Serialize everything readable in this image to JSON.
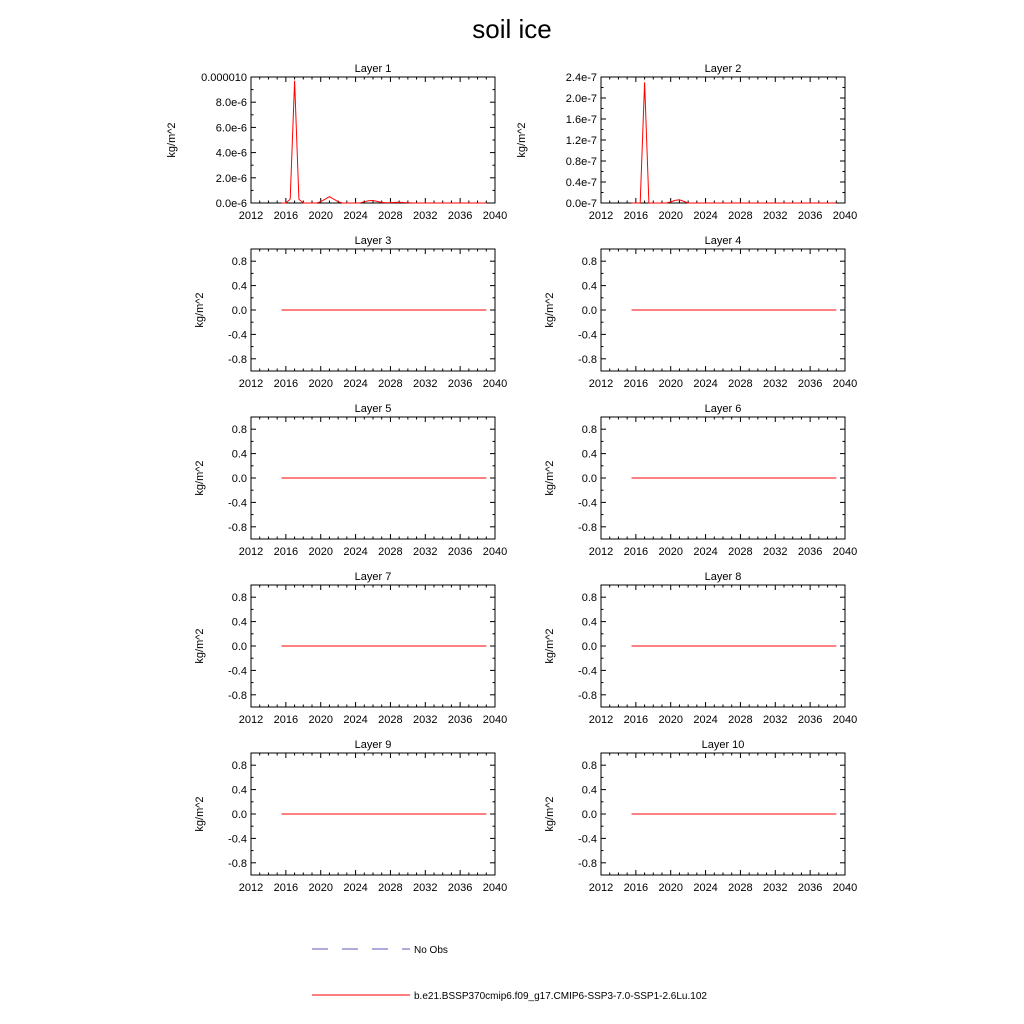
{
  "title": "soil ice",
  "colors": {
    "model": "#ff0000",
    "obs": "#5a5ab4",
    "axis": "#000000"
  },
  "legend": [
    {
      "label": "No Obs",
      "style": "dashed",
      "color": "#5a5ab4"
    },
    {
      "label": "b.e21.BSSP370cmip6.f09_g17.CMIP6-SSP3-7.0-SSP1-2.6Lu.102",
      "style": "solid",
      "color": "#ff0000"
    }
  ],
  "chart_data": [
    {
      "type": "line",
      "title": "Layer 1",
      "ylabel": "kg/m^2",
      "xlim": [
        2012,
        2040
      ],
      "xticks": [
        "2012",
        "2016",
        "2020",
        "2024",
        "2028",
        "2032",
        "2036",
        "2040"
      ],
      "ylim": [
        0,
        1e-05
      ],
      "yticks": [
        "0.0e-6",
        "2.0e-6",
        "4.0e-6",
        "6.0e-6",
        "8.0e-6",
        "0.000010"
      ],
      "series": [
        {
          "x": [
            2015.5,
            2016,
            2016.5,
            2017,
            2017.5,
            2018,
            2018.5,
            2019,
            2019.5,
            2020,
            2020.5,
            2021,
            2021.5,
            2022,
            2022.5,
            2023,
            2023.5,
            2024,
            2024.5,
            2025,
            2025.5,
            2026,
            2026.5,
            2027,
            2027.5,
            2028,
            2028.5,
            2029,
            2029.5,
            2030,
            2030.5,
            2031,
            2032,
            2033,
            2034,
            2035,
            2036,
            2037,
            2038,
            2039
          ],
          "y": [
            0,
            0,
            3e-07,
            9.7e-06,
            3e-07,
            0,
            0,
            0,
            0,
            1e-07,
            3e-07,
            5e-07,
            3e-07,
            1e-07,
            0,
            0,
            0,
            0,
            0,
            1e-07,
            1.8e-07,
            2e-07,
            1.2e-07,
            5e-08,
            2e-08,
            3e-08,
            5e-08,
            6e-08,
            4e-08,
            2e-08,
            1e-08,
            0,
            0,
            0,
            0,
            0,
            0,
            0,
            0,
            0
          ]
        }
      ]
    },
    {
      "type": "line",
      "title": "Layer 2",
      "ylabel": "kg/m^2",
      "xlim": [
        2012,
        2040
      ],
      "xticks": [
        "2012",
        "2016",
        "2020",
        "2024",
        "2028",
        "2032",
        "2036",
        "2040"
      ],
      "ylim": [
        0,
        2.4e-07
      ],
      "yticks": [
        "0.0e-7",
        "0.4e-7",
        "0.8e-7",
        "1.2e-7",
        "1.6e-7",
        "2.0e-7",
        "2.4e-7"
      ],
      "series": [
        {
          "x": [
            2015.5,
            2016,
            2016.5,
            2017,
            2017.5,
            2018,
            2018.5,
            2019,
            2019.5,
            2020,
            2020.5,
            2021,
            2021.5,
            2022,
            2023,
            2024,
            2025,
            2026,
            2027,
            2028,
            2029,
            2030,
            2031,
            2032,
            2033,
            2034,
            2035,
            2036,
            2037,
            2038,
            2039
          ],
          "y": [
            0,
            0,
            0,
            2.3e-07,
            0,
            0,
            0,
            0,
            0,
            2e-09,
            5e-09,
            6e-09,
            3e-09,
            0,
            0,
            0,
            0,
            0,
            0,
            0,
            0,
            0,
            0,
            0,
            0,
            0,
            0,
            0,
            0,
            0,
            0
          ]
        }
      ]
    },
    {
      "type": "line",
      "title": "Layer 3",
      "ylabel": "kg/m^2",
      "xlim": [
        2012,
        2040
      ],
      "xticks": [
        "2012",
        "2016",
        "2020",
        "2024",
        "2028",
        "2032",
        "2036",
        "2040"
      ],
      "ylim": [
        -1,
        1
      ],
      "yticks": [
        "-0.8",
        "-0.4",
        "0.0",
        "0.4",
        "0.8"
      ],
      "series": [
        {
          "x": [
            2015.5,
            2039
          ],
          "y": [
            0,
            0
          ]
        }
      ]
    },
    {
      "type": "line",
      "title": "Layer 4",
      "ylabel": "kg/m^2",
      "xlim": [
        2012,
        2040
      ],
      "xticks": [
        "2012",
        "2016",
        "2020",
        "2024",
        "2028",
        "2032",
        "2036",
        "2040"
      ],
      "ylim": [
        -1,
        1
      ],
      "yticks": [
        "-0.8",
        "-0.4",
        "0.0",
        "0.4",
        "0.8"
      ],
      "series": [
        {
          "x": [
            2015.5,
            2039
          ],
          "y": [
            0,
            0
          ]
        }
      ]
    },
    {
      "type": "line",
      "title": "Layer 5",
      "ylabel": "kg/m^2",
      "xlim": [
        2012,
        2040
      ],
      "xticks": [
        "2012",
        "2016",
        "2020",
        "2024",
        "2028",
        "2032",
        "2036",
        "2040"
      ],
      "ylim": [
        -1,
        1
      ],
      "yticks": [
        "-0.8",
        "-0.4",
        "0.0",
        "0.4",
        "0.8"
      ],
      "series": [
        {
          "x": [
            2015.5,
            2039
          ],
          "y": [
            0,
            0
          ]
        }
      ]
    },
    {
      "type": "line",
      "title": "Layer 6",
      "ylabel": "kg/m^2",
      "xlim": [
        2012,
        2040
      ],
      "xticks": [
        "2012",
        "2016",
        "2020",
        "2024",
        "2028",
        "2032",
        "2036",
        "2040"
      ],
      "ylim": [
        -1,
        1
      ],
      "yticks": [
        "-0.8",
        "-0.4",
        "0.0",
        "0.4",
        "0.8"
      ],
      "series": [
        {
          "x": [
            2015.5,
            2039
          ],
          "y": [
            0,
            0
          ]
        }
      ]
    },
    {
      "type": "line",
      "title": "Layer 7",
      "ylabel": "kg/m^2",
      "xlim": [
        2012,
        2040
      ],
      "xticks": [
        "2012",
        "2016",
        "2020",
        "2024",
        "2028",
        "2032",
        "2036",
        "2040"
      ],
      "ylim": [
        -1,
        1
      ],
      "yticks": [
        "-0.8",
        "-0.4",
        "0.0",
        "0.4",
        "0.8"
      ],
      "series": [
        {
          "x": [
            2015.5,
            2039
          ],
          "y": [
            0,
            0
          ]
        }
      ]
    },
    {
      "type": "line",
      "title": "Layer 8",
      "ylabel": "kg/m^2",
      "xlim": [
        2012,
        2040
      ],
      "xticks": [
        "2012",
        "2016",
        "2020",
        "2024",
        "2028",
        "2032",
        "2036",
        "2040"
      ],
      "ylim": [
        -1,
        1
      ],
      "yticks": [
        "-0.8",
        "-0.4",
        "0.0",
        "0.4",
        "0.8"
      ],
      "series": [
        {
          "x": [
            2015.5,
            2039
          ],
          "y": [
            0,
            0
          ]
        }
      ]
    },
    {
      "type": "line",
      "title": "Layer 9",
      "ylabel": "kg/m^2",
      "xlim": [
        2012,
        2040
      ],
      "xticks": [
        "2012",
        "2016",
        "2020",
        "2024",
        "2028",
        "2032",
        "2036",
        "2040"
      ],
      "ylim": [
        -1,
        1
      ],
      "yticks": [
        "-0.8",
        "-0.4",
        "0.0",
        "0.4",
        "0.8"
      ],
      "series": [
        {
          "x": [
            2015.5,
            2039
          ],
          "y": [
            0,
            0
          ]
        }
      ]
    },
    {
      "type": "line",
      "title": "Layer 10",
      "ylabel": "kg/m^2",
      "xlim": [
        2012,
        2040
      ],
      "xticks": [
        "2012",
        "2016",
        "2020",
        "2024",
        "2028",
        "2032",
        "2036",
        "2040"
      ],
      "ylim": [
        -1,
        1
      ],
      "yticks": [
        "-0.8",
        "-0.4",
        "0.0",
        "0.4",
        "0.8"
      ],
      "series": [
        {
          "x": [
            2015.5,
            2039
          ],
          "y": [
            0,
            0
          ]
        }
      ]
    }
  ]
}
